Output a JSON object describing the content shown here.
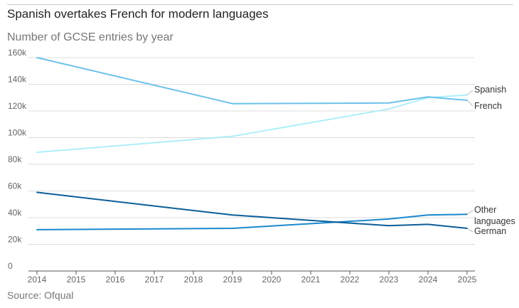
{
  "header": {
    "title": "Spanish overtakes French for modern languages",
    "subtitle": "Number of GCSE entries by year"
  },
  "footer": {
    "source": "Source: Ofqual"
  },
  "chart_data": {
    "type": "line",
    "title": "Spanish overtakes French for modern languages",
    "subtitle": "Number of GCSE entries by year",
    "xlabel": "",
    "ylabel": "",
    "x": [
      2014,
      2015,
      2016,
      2017,
      2018,
      2019,
      2020,
      2021,
      2022,
      2023,
      2024,
      2025
    ],
    "ylim": [
      0,
      160000
    ],
    "yticks": [
      0,
      20000,
      40000,
      60000,
      80000,
      100000,
      120000,
      140000,
      160000
    ],
    "ytick_labels": [
      "0",
      "20k",
      "40k",
      "60k",
      "80k",
      "100k",
      "120k",
      "140k",
      "160k"
    ],
    "xtick_labels": [
      "2014",
      "2015",
      "2016",
      "2017",
      "2018",
      "2019",
      "2020",
      "2021",
      "2022",
      "2023",
      "2024",
      "2025"
    ],
    "grid": "horizontal",
    "legend": "direct labels at right",
    "series": [
      {
        "name": "French",
        "color": "#6cc1ea",
        "label_lines": [
          "French"
        ],
        "points": [
          [
            2014,
            160000
          ],
          [
            2019,
            125500
          ],
          [
            2023,
            126000
          ],
          [
            2024,
            130500
          ],
          [
            2025,
            128000
          ]
        ]
      },
      {
        "name": "Spanish",
        "color": "#aeeefa",
        "label_lines": [
          "Spanish"
        ],
        "points": [
          [
            2014,
            89000
          ],
          [
            2019,
            101000
          ],
          [
            2023,
            121500
          ],
          [
            2024,
            130000
          ],
          [
            2025,
            132000
          ]
        ]
      },
      {
        "name": "German",
        "color": "#0b5e99",
        "label_lines": [
          "German"
        ],
        "points": [
          [
            2014,
            59000
          ],
          [
            2019,
            42000
          ],
          [
            2023,
            34000
          ],
          [
            2024,
            35000
          ],
          [
            2025,
            32000
          ]
        ]
      },
      {
        "name": "Other languages",
        "color": "#1989cc",
        "label_lines": [
          "Other",
          "languages"
        ],
        "points": [
          [
            2014,
            31000
          ],
          [
            2019,
            32000
          ],
          [
            2023,
            39000
          ],
          [
            2024,
            42000
          ],
          [
            2025,
            42500
          ]
        ]
      }
    ]
  }
}
